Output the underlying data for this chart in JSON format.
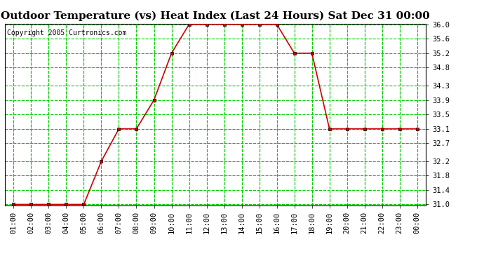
{
  "title": "Outdoor Temperature (vs) Heat Index (Last 24 Hours) Sat Dec 31 00:00",
  "copyright": "Copyright 2005 Curtronics.com",
  "x_labels": [
    "01:00",
    "02:00",
    "03:00",
    "04:00",
    "05:00",
    "06:00",
    "07:00",
    "08:00",
    "09:00",
    "10:00",
    "11:00",
    "12:00",
    "13:00",
    "14:00",
    "15:00",
    "16:00",
    "17:00",
    "18:00",
    "19:00",
    "20:00",
    "21:00",
    "22:00",
    "23:00",
    "00:00"
  ],
  "y_values": [
    31.0,
    31.0,
    31.0,
    31.0,
    31.0,
    32.2,
    33.1,
    33.1,
    33.9,
    35.2,
    36.0,
    36.0,
    36.0,
    36.0,
    36.0,
    36.0,
    35.2,
    35.2,
    33.1,
    33.1,
    33.1,
    33.1,
    33.1,
    33.1
  ],
  "y_min": 31.0,
  "y_max": 36.0,
  "y_ticks": [
    31.0,
    31.4,
    31.8,
    32.2,
    32.7,
    33.1,
    33.5,
    33.9,
    34.3,
    34.8,
    35.2,
    35.6,
    36.0
  ],
  "line_color": "#cc0000",
  "marker": "s",
  "marker_color": "#cc0000",
  "marker_size": 3,
  "bg_color": "#ffffff",
  "plot_bg_color": "#ffffff",
  "grid_color": "#00cc00",
  "grid_style": "--",
  "title_fontsize": 11,
  "tick_fontsize": 7.5,
  "copyright_fontsize": 7
}
